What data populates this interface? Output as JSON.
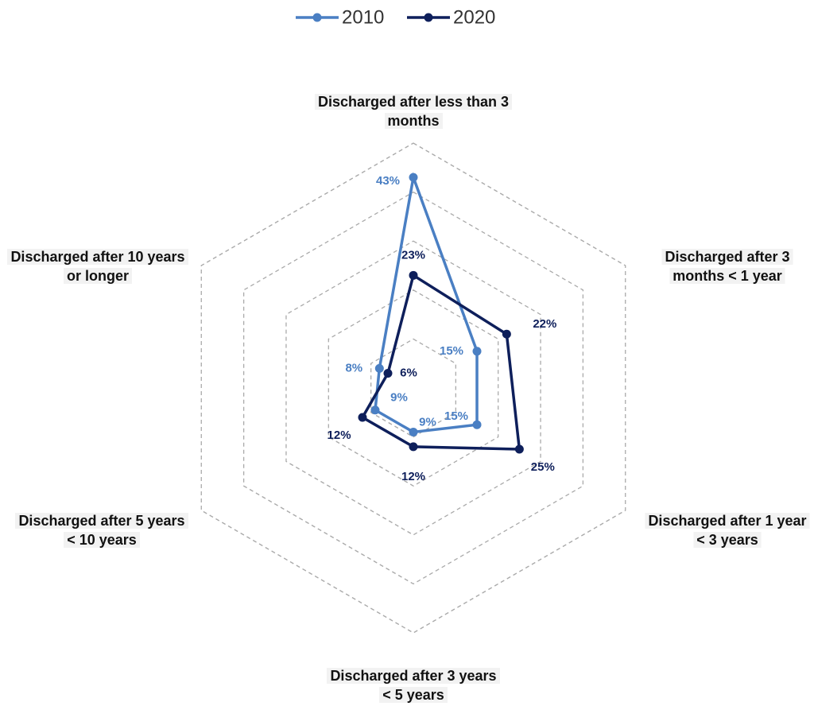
{
  "chart_data": {
    "type": "radar",
    "categories": [
      "Discharged after less than 3 months",
      "Discharged after 3 months < 1 year",
      "Discharged after 1 year < 3 years",
      "Discharged after 3 years < 5 years",
      "Discharged after 5 years < 10 years",
      "Discharged after 10 years or longer"
    ],
    "series": [
      {
        "name": "2010",
        "color": "#4a7fc3",
        "values": [
          43,
          15,
          15,
          9,
          9,
          8
        ],
        "value_labels": [
          "43%",
          "15%",
          "15%",
          "9%",
          "9%",
          "8%"
        ]
      },
      {
        "name": "2020",
        "color": "#0e1f5b",
        "values": [
          23,
          22,
          25,
          12,
          12,
          6
        ],
        "value_labels": [
          "23%",
          "22%",
          "25%",
          "12%",
          "12%",
          "6%"
        ]
      }
    ],
    "rlim": [
      0,
      50
    ],
    "rticks": [
      10,
      20,
      30,
      40,
      50
    ],
    "grid": true,
    "legend": "top"
  }
}
